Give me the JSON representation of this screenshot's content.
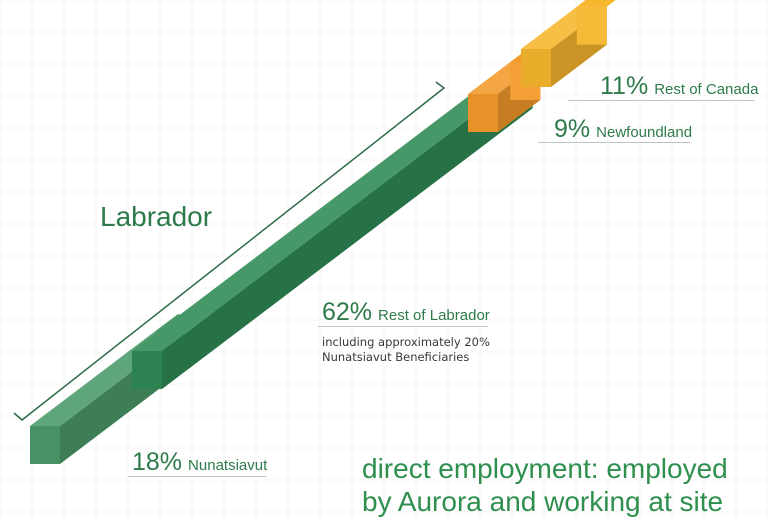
{
  "chart_data": {
    "type": "bar",
    "subtype": "stacked-3d",
    "title": "",
    "segments": [
      {
        "pct": "18%",
        "label": "Nunatsiavut",
        "value": 18,
        "color": "#4a9a6a"
      },
      {
        "pct": "62%",
        "label": "Rest of Labrador",
        "value": 62,
        "color": "#2e8a55",
        "note_lines": [
          "including approximately 20%",
          "Nunatsiavut Beneficiaries"
        ]
      },
      {
        "pct": "9%",
        "label": "Newfoundland",
        "value": 9,
        "color": "#f39a2a"
      },
      {
        "pct": "11%",
        "label": "Rest of Canada",
        "value": 11,
        "color": "#f6b62d"
      }
    ],
    "group_label": "Labrador",
    "caption_lines": [
      "direct employment: employed",
      "by Aurora and working at site"
    ]
  }
}
